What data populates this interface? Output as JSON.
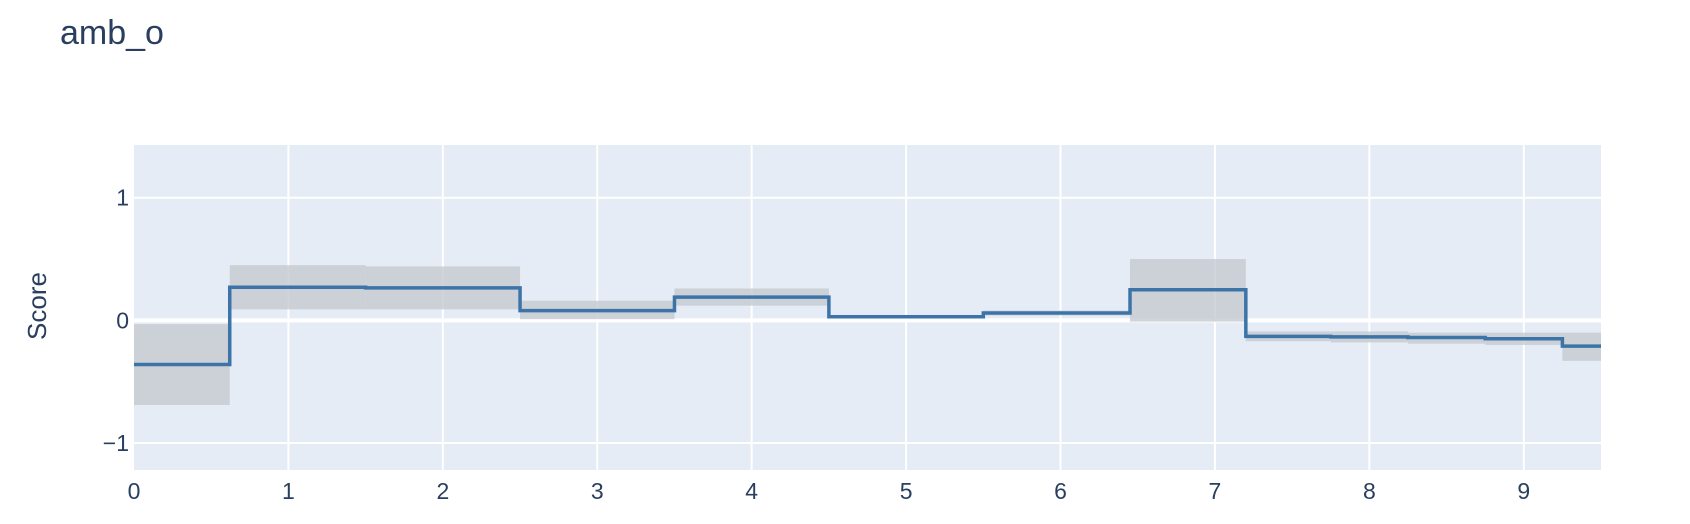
{
  "chart_data": {
    "type": "line",
    "line_shape": "step",
    "title": "amb_o",
    "xlabel": "",
    "ylabel": "Score",
    "xlim": [
      0,
      9.5
    ],
    "ylim": [
      -1.22,
      1.43
    ],
    "x_ticks": [
      0,
      1,
      2,
      3,
      4,
      5,
      6,
      7,
      8,
      9
    ],
    "y_ticks": [
      -1,
      0,
      1
    ],
    "y_tick_labels": [
      "−1",
      "0",
      "1"
    ],
    "grid": true,
    "legend": false,
    "colors": {
      "plot_background": "#e5ecf6",
      "grid": "#ffffff",
      "line": "#3d74a8",
      "band": "#c6c9d0",
      "text": "#2a3f5f"
    },
    "series": [
      {
        "edges": [
          0,
          0.62,
          1.5,
          2.5,
          3.5,
          4.5,
          5.5,
          6.45,
          7.2,
          7.75,
          8.25,
          8.75,
          9.25,
          9.5
        ],
        "values": [
          -0.36,
          0.27,
          0.265,
          0.08,
          0.19,
          0.03,
          0.06,
          0.25,
          -0.13,
          -0.135,
          -0.14,
          -0.15,
          -0.21
        ],
        "lower": [
          -0.69,
          0.09,
          0.09,
          0.01,
          0.12,
          0.02,
          0.04,
          -0.01,
          -0.17,
          -0.18,
          -0.19,
          -0.2,
          -0.33
        ],
        "upper": [
          -0.03,
          0.45,
          0.44,
          0.16,
          0.26,
          0.04,
          0.08,
          0.5,
          -0.09,
          -0.09,
          -0.1,
          -0.1,
          -0.1
        ]
      }
    ]
  }
}
